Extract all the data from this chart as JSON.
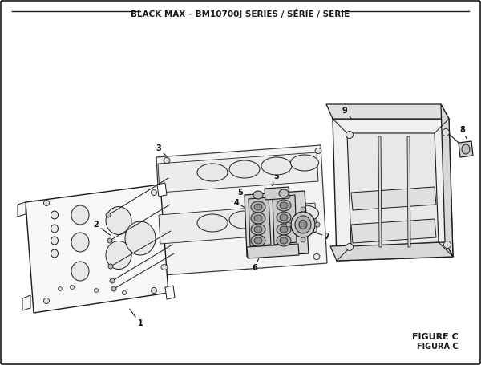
{
  "title": "BLACK MAX – BM10700J SERIES / SÉRIE / SERIE",
  "figure_label": "FIGURE C",
  "figura_label": "FIGURA C",
  "bg_color": "#ffffff",
  "lc": "#1a1a1a",
  "title_fontsize": 7.5,
  "label_fontsize": 7,
  "fig_width": 6.0,
  "fig_height": 4.55,
  "dpi": 100
}
